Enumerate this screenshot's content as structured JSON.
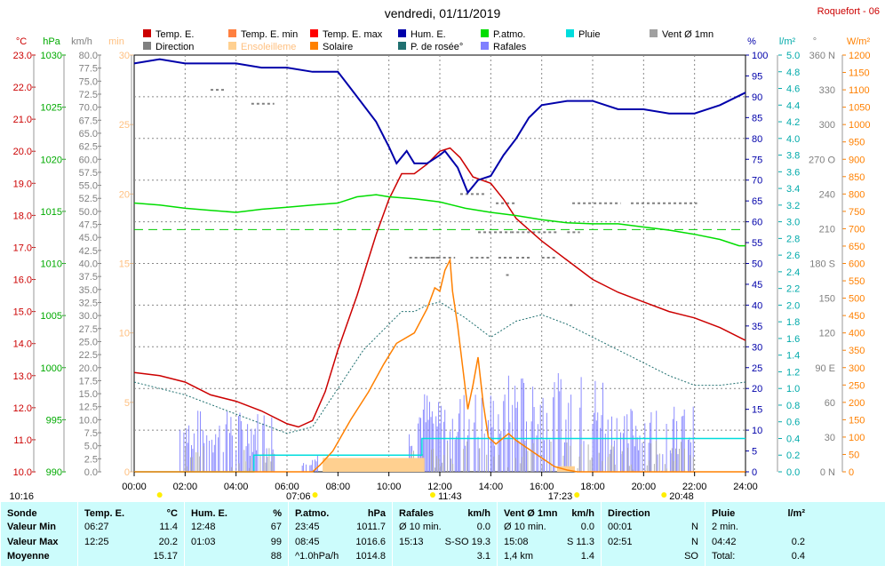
{
  "title": "vendredi, 01/11/2019",
  "station": "Roquefort - 06",
  "legend": [
    {
      "label": "Temp. E.",
      "color": "#cc0000",
      "col": 0,
      "row": 0
    },
    {
      "label": "Direction",
      "color": "#808080",
      "col": 0,
      "row": 1
    },
    {
      "label": "Temp. E. min",
      "color": "#ff8040",
      "col": 1,
      "row": 0
    },
    {
      "label": "Ensoleilleme",
      "color": "#ffd090",
      "col": 1,
      "row": 1
    },
    {
      "label": "Temp. E. max",
      "color": "#ff0000",
      "col": 2,
      "row": 0
    },
    {
      "label": "Solaire",
      "color": "#ff8000",
      "col": 2,
      "row": 1
    },
    {
      "label": "Hum. E.",
      "color": "#0000aa",
      "col": 3,
      "row": 0
    },
    {
      "label": "P. de rosée°",
      "color": "#207070",
      "col": 3,
      "row": 1
    },
    {
      "label": "P.atmo.",
      "color": "#00dd00",
      "col": 4,
      "row": 0
    },
    {
      "label": "Rafales",
      "color": "#8080ff",
      "col": 4,
      "row": 1
    },
    {
      "label": "Pluie",
      "color": "#00dddd",
      "col": 5,
      "row": 0
    },
    {
      "label": "Vent Ø 1mn",
      "color": "#a0a0a0",
      "col": 6,
      "row": 0
    }
  ],
  "axis_units": {
    "temp": "°C",
    "press": "hPa",
    "wind": "km/h",
    "sun": "min",
    "hum": "%",
    "rain": "l/m²",
    "dir": "°",
    "solar": "W/m²"
  },
  "chart_data": {
    "type": "line",
    "x_ticks": [
      "00:00",
      "02:00",
      "04:00",
      "06:00",
      "08:00",
      "10:00",
      "12:00",
      "14:00",
      "16:00",
      "18:00",
      "20:00",
      "22:00",
      "24:00"
    ],
    "x_range_h": [
      0,
      24
    ],
    "axes": {
      "temp": {
        "min": 10,
        "max": 23,
        "step": 1,
        "color": "#cc0000"
      },
      "press": {
        "min": 990,
        "max": 1030,
        "step": 5,
        "color": "#00aa00"
      },
      "wind": {
        "min": 0,
        "max": 80,
        "step": 2.5,
        "color": "#808080"
      },
      "sun": {
        "min": 0,
        "max": 30,
        "step": 5,
        "color": "#ffc080"
      },
      "hum": {
        "min": 0,
        "max": 100,
        "step": 5,
        "color": "#0000aa"
      },
      "rain": {
        "min": 0,
        "max": 5,
        "step": 0.2,
        "color": "#00aaaa"
      },
      "dir": {
        "ticks": [
          "0 N",
          "30",
          "60",
          "90 E",
          "120",
          "150",
          "180 S",
          "210",
          "240",
          "270 O",
          "300",
          "330",
          "360 N"
        ],
        "color": "#808080"
      },
      "solar": {
        "min": 0,
        "max": 1200,
        "step": 50,
        "color": "#ff8000"
      }
    },
    "series": [
      {
        "name": "Temp. E.",
        "axis": "temp",
        "color": "#cc0000",
        "points": [
          [
            0,
            13.1
          ],
          [
            1,
            13.0
          ],
          [
            2,
            12.8
          ],
          [
            3,
            12.4
          ],
          [
            4,
            12.2
          ],
          [
            5,
            11.9
          ],
          [
            6,
            11.5
          ],
          [
            6.45,
            11.4
          ],
          [
            7,
            11.6
          ],
          [
            7.5,
            12.5
          ],
          [
            8,
            13.8
          ],
          [
            8.75,
            15.5
          ],
          [
            9.5,
            17.4
          ],
          [
            10,
            18.5
          ],
          [
            10.5,
            19.3
          ],
          [
            11,
            19.3
          ],
          [
            11.5,
            19.6
          ],
          [
            12,
            20.0
          ],
          [
            12.4,
            20.1
          ],
          [
            12.8,
            19.8
          ],
          [
            13.3,
            19.2
          ],
          [
            14,
            19.0
          ],
          [
            14.5,
            18.5
          ],
          [
            15,
            17.9
          ],
          [
            16,
            17.2
          ],
          [
            17,
            16.6
          ],
          [
            18,
            16.0
          ],
          [
            19,
            15.6
          ],
          [
            20,
            15.3
          ],
          [
            21,
            15.0
          ],
          [
            22,
            14.8
          ],
          [
            23,
            14.5
          ],
          [
            24,
            14.1
          ]
        ]
      },
      {
        "name": "Hum. E.",
        "axis": "hum",
        "color": "#0000aa",
        "points": [
          [
            0,
            98
          ],
          [
            1,
            99
          ],
          [
            2,
            98
          ],
          [
            4,
            98
          ],
          [
            5,
            97
          ],
          [
            6,
            97
          ],
          [
            7,
            96
          ],
          [
            8,
            96
          ],
          [
            8.5,
            92
          ],
          [
            9.5,
            84
          ],
          [
            10,
            78
          ],
          [
            10.3,
            74
          ],
          [
            10.7,
            77
          ],
          [
            11,
            74
          ],
          [
            11.5,
            74
          ],
          [
            12,
            76
          ],
          [
            12.2,
            77
          ],
          [
            12.7,
            73
          ],
          [
            13.1,
            67
          ],
          [
            13.5,
            70
          ],
          [
            14,
            71
          ],
          [
            14.5,
            76
          ],
          [
            15,
            80
          ],
          [
            15.5,
            85
          ],
          [
            16,
            88
          ],
          [
            17,
            89
          ],
          [
            18,
            89
          ],
          [
            19,
            87
          ],
          [
            20,
            87
          ],
          [
            21,
            86
          ],
          [
            22,
            86
          ],
          [
            23,
            88
          ],
          [
            24,
            91
          ]
        ]
      },
      {
        "name": "P. de rosée°",
        "axis": "temp",
        "color": "#207070",
        "dashed": true,
        "points": [
          [
            0,
            12.8
          ],
          [
            1,
            12.6
          ],
          [
            2,
            12.4
          ],
          [
            3,
            12.1
          ],
          [
            4,
            11.8
          ],
          [
            5,
            11.5
          ],
          [
            6,
            11.2
          ],
          [
            7,
            11.4
          ],
          [
            8,
            12.6
          ],
          [
            9,
            13.8
          ],
          [
            10,
            14.6
          ],
          [
            10.5,
            15.0
          ],
          [
            11,
            15.0
          ],
          [
            11.5,
            15.2
          ],
          [
            12,
            15.3
          ],
          [
            13,
            14.8
          ],
          [
            14,
            14.2
          ],
          [
            15,
            14.7
          ],
          [
            16,
            14.9
          ],
          [
            17,
            14.6
          ],
          [
            18,
            14.2
          ],
          [
            19,
            13.8
          ],
          [
            20,
            13.4
          ],
          [
            21,
            13.0
          ],
          [
            22,
            12.7
          ],
          [
            23,
            12.7
          ],
          [
            24,
            12.8
          ]
        ]
      },
      {
        "name": "P.atmo.",
        "axis": "press",
        "color": "#00dd00",
        "points": [
          [
            0,
            1015.8
          ],
          [
            1,
            1015.6
          ],
          [
            2,
            1015.3
          ],
          [
            3,
            1015.1
          ],
          [
            4,
            1014.9
          ],
          [
            5,
            1015.2
          ],
          [
            6,
            1015.4
          ],
          [
            7,
            1015.6
          ],
          [
            8,
            1015.8
          ],
          [
            8.75,
            1016.4
          ],
          [
            9.5,
            1016.6
          ],
          [
            10,
            1016.4
          ],
          [
            11,
            1016.2
          ],
          [
            12,
            1015.9
          ],
          [
            13,
            1015.3
          ],
          [
            14,
            1014.9
          ],
          [
            15,
            1014.6
          ],
          [
            16,
            1014.2
          ],
          [
            17,
            1013.9
          ],
          [
            18,
            1013.8
          ],
          [
            19,
            1013.8
          ],
          [
            20,
            1013.5
          ],
          [
            21,
            1013.2
          ],
          [
            22,
            1012.8
          ],
          [
            23,
            1012.3
          ],
          [
            23.75,
            1011.7
          ],
          [
            24,
            1011.7
          ]
        ]
      },
      {
        "name": "Solaire",
        "axis": "solar",
        "color": "#ff8000",
        "points": [
          [
            0,
            0
          ],
          [
            7,
            0
          ],
          [
            7.3,
            20
          ],
          [
            7.8,
            60
          ],
          [
            8.5,
            150
          ],
          [
            9.2,
            230
          ],
          [
            9.8,
            310
          ],
          [
            10.3,
            370
          ],
          [
            11,
            400
          ],
          [
            11.5,
            470
          ],
          [
            11.8,
            530
          ],
          [
            12,
            520
          ],
          [
            12.2,
            580
          ],
          [
            12.4,
            610
          ],
          [
            12.5,
            520
          ],
          [
            12.7,
            420
          ],
          [
            12.9,
            300
          ],
          [
            13.1,
            180
          ],
          [
            13.3,
            250
          ],
          [
            13.5,
            330
          ],
          [
            13.7,
            200
          ],
          [
            13.9,
            100
          ],
          [
            14.2,
            80
          ],
          [
            14.7,
            110
          ],
          [
            15,
            90
          ],
          [
            16,
            40
          ],
          [
            16.5,
            15
          ],
          [
            17,
            5
          ],
          [
            17.4,
            0
          ],
          [
            24,
            0
          ]
        ]
      }
    ],
    "pressure_ref": 1013.25,
    "rain_total_lm2": 0.4
  },
  "footer": {
    "labels": {
      "sonde": "Sonde",
      "min": "Valeur Min",
      "max": "Valeur Max",
      "moy": "Moyenne"
    },
    "sunrise": "07:06",
    "sunset": "17:23",
    "noon": "11:43",
    "moonrise": "10:16",
    "moonset": "20:48",
    "cols": [
      {
        "title": "Temp. E.",
        "unit": "°C",
        "r1": [
          "06:27",
          "11.4"
        ],
        "r2": [
          "12:25",
          "20.2"
        ],
        "r3": [
          "",
          "15.17"
        ]
      },
      {
        "title": "Hum. E.",
        "unit": "%",
        "r1": [
          "12:48",
          "67"
        ],
        "r2": [
          "01:03",
          "99"
        ],
        "r3": [
          "",
          "88"
        ]
      },
      {
        "title": "P.atmo.",
        "unit": "hPa",
        "r1": [
          "23:45",
          "1011.7"
        ],
        "r2": [
          "08:45",
          "1016.6"
        ],
        "r3": [
          "^1.0hPa/h",
          "1014.8"
        ]
      },
      {
        "title": "Rafales",
        "unit": "km/h",
        "r1": [
          "Ø 10 min.",
          "0.0"
        ],
        "r2": [
          "15:13",
          "S-SO 19.3"
        ],
        "r3": [
          "",
          "3.1"
        ]
      },
      {
        "title": "Vent Ø 1mn",
        "unit": "km/h",
        "r1": [
          "Ø 10 min.",
          "0.0"
        ],
        "r2": [
          "15:08",
          "S 11.3"
        ],
        "r3": [
          "1,4 km",
          "1.4"
        ]
      },
      {
        "title": "Direction",
        "unit": "",
        "r1": [
          "00:01",
          "N"
        ],
        "r2": [
          "02:51",
          "N"
        ],
        "r3": [
          "",
          "SO"
        ]
      },
      {
        "title": "Pluie",
        "unit": "l/m²",
        "r1": [
          "2 min.",
          ""
        ],
        "r2": [
          "04:42",
          "0.2"
        ],
        "r3": [
          "Total:",
          "0.4"
        ]
      }
    ]
  }
}
